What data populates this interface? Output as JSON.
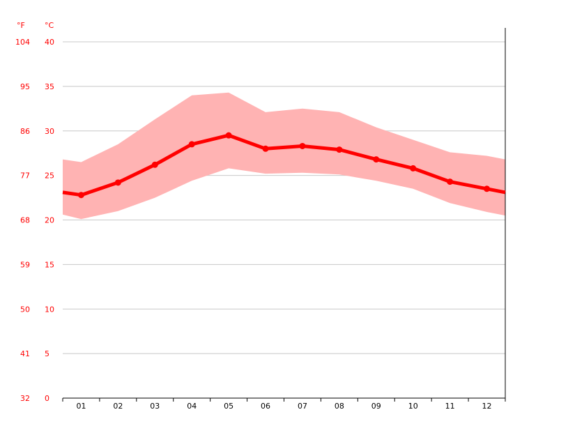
{
  "chart_data": {
    "type": "line",
    "title": "",
    "xlabel": "",
    "ylabel": "",
    "categories": [
      "01",
      "02",
      "03",
      "04",
      "05",
      "06",
      "07",
      "08",
      "09",
      "10",
      "11",
      "12"
    ],
    "series": [
      {
        "values": [
          22.8,
          24.2,
          26.2,
          28.5,
          29.5,
          28.0,
          28.3,
          27.9,
          26.8,
          25.8,
          24.3,
          23.5
        ],
        "color": "#ff0000"
      }
    ],
    "band": {
      "upper": [
        26.5,
        28.5,
        31.3,
        34.0,
        34.3,
        32.1,
        32.5,
        32.1,
        30.4,
        29.0,
        27.6,
        27.2
      ],
      "lower": [
        20.1,
        21.0,
        22.5,
        24.4,
        25.8,
        25.2,
        25.3,
        25.1,
        24.4,
        23.5,
        21.9,
        20.9
      ],
      "edge_start": {
        "upper": 26.8,
        "lower": 20.6,
        "mean": 23.1
      },
      "edge_end": {
        "upper": 26.8,
        "lower": 20.5,
        "mean": 23.1
      },
      "color": "#ffb3b3"
    },
    "ylim": [
      0,
      40
    ],
    "y_ticks_c": [
      "0",
      "5",
      "10",
      "15",
      "20",
      "25",
      "30",
      "35",
      "40"
    ],
    "y_ticks_f": [
      "32",
      "41",
      "50",
      "59",
      "68",
      "77",
      "86",
      "95",
      "104"
    ],
    "unit_labels": {
      "fahrenheit": "°F",
      "celsius": "°C"
    },
    "grid": true,
    "legend": "none"
  }
}
